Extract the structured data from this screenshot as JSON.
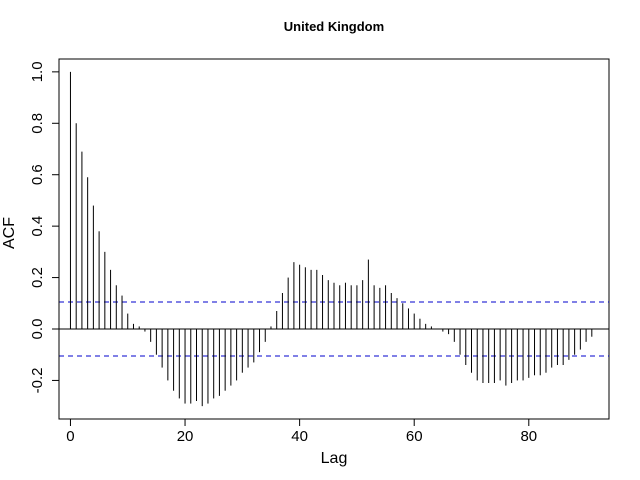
{
  "chart_data": {
    "type": "bar",
    "subtype": "acf-stem",
    "title": "United Kingdom",
    "xlabel": "Lag",
    "ylabel": "ACF",
    "xlim": [
      -2,
      94
    ],
    "ylim": [
      -0.35,
      1.05
    ],
    "x_ticks": [
      0,
      20,
      40,
      60,
      80
    ],
    "x_tick_labels": [
      "0",
      "20",
      "40",
      "60",
      "80"
    ],
    "y_ticks": [
      -0.2,
      0.0,
      0.2,
      0.4,
      0.6,
      0.8,
      1.0
    ],
    "y_tick_labels": [
      "-0.2",
      "0.0",
      "0.2",
      "0.4",
      "0.6",
      "0.8",
      "1.0"
    ],
    "confidence_bound": 0.105,
    "confidence_color": "#0000cc",
    "bar_color": "#000000",
    "lags": [
      0,
      1,
      2,
      3,
      4,
      5,
      6,
      7,
      8,
      9,
      10,
      11,
      12,
      13,
      14,
      15,
      16,
      17,
      18,
      19,
      20,
      21,
      22,
      23,
      24,
      25,
      26,
      27,
      28,
      29,
      30,
      31,
      32,
      33,
      34,
      35,
      36,
      37,
      38,
      39,
      40,
      41,
      42,
      43,
      44,
      45,
      46,
      47,
      48,
      49,
      50,
      51,
      52,
      53,
      54,
      55,
      56,
      57,
      58,
      59,
      60,
      61,
      62,
      63,
      64,
      65,
      66,
      67,
      68,
      69,
      70,
      71,
      72,
      73,
      74,
      75,
      76,
      77,
      78,
      79,
      80,
      81,
      82,
      83,
      84,
      85,
      86,
      87,
      88,
      89,
      90,
      91
    ],
    "values": [
      1.0,
      0.8,
      0.69,
      0.59,
      0.48,
      0.38,
      0.3,
      0.23,
      0.17,
      0.13,
      0.06,
      0.02,
      0.01,
      -0.01,
      -0.05,
      -0.1,
      -0.15,
      -0.2,
      -0.24,
      -0.27,
      -0.29,
      -0.29,
      -0.28,
      -0.3,
      -0.29,
      -0.27,
      -0.26,
      -0.24,
      -0.22,
      -0.2,
      -0.17,
      -0.15,
      -0.13,
      -0.09,
      -0.05,
      0.01,
      0.07,
      0.14,
      0.2,
      0.26,
      0.25,
      0.24,
      0.23,
      0.23,
      0.21,
      0.19,
      0.18,
      0.17,
      0.18,
      0.17,
      0.17,
      0.19,
      0.27,
      0.17,
      0.16,
      0.17,
      0.14,
      0.12,
      0.1,
      0.08,
      0.06,
      0.04,
      0.02,
      0.01,
      0.0,
      -0.01,
      -0.02,
      -0.05,
      -0.1,
      -0.14,
      -0.17,
      -0.2,
      -0.21,
      -0.21,
      -0.21,
      -0.2,
      -0.22,
      -0.21,
      -0.2,
      -0.2,
      -0.19,
      -0.18,
      -0.18,
      -0.17,
      -0.15,
      -0.14,
      -0.14,
      -0.12,
      -0.1,
      -0.08,
      -0.05,
      -0.03
    ]
  }
}
